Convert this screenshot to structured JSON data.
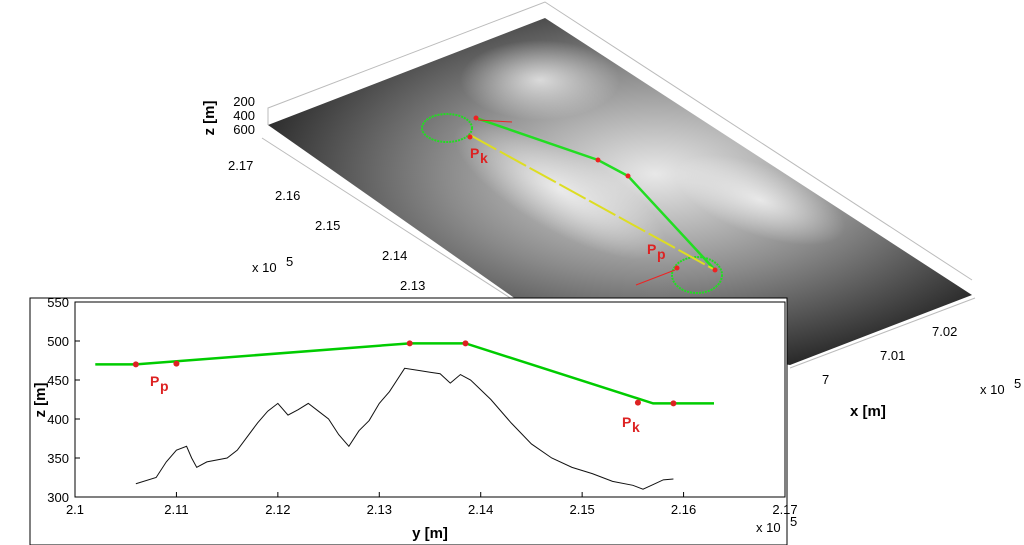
{
  "chart_data": [
    {
      "type": "surface3d",
      "zlabel": "z  [m]",
      "xlabel": "x  [m]",
      "zticks": [
        200,
        400,
        600
      ],
      "yticks": [
        2.13,
        2.14,
        2.15,
        2.16,
        2.17
      ],
      "xticks": [
        7,
        7.01,
        7.02
      ],
      "y_scale_label": {
        "base": "x 10",
        "exponent": "5"
      },
      "x_scale_label": {
        "base": "x 10",
        "exponent": "5"
      },
      "annotations": [
        {
          "text": "P",
          "sub": "k"
        },
        {
          "text": "P",
          "sub": "p"
        }
      ]
    },
    {
      "type": "line",
      "xlabel": "y  [m]",
      "ylabel": "z  [m]",
      "xlim": [
        2.1,
        2.17
      ],
      "xticks": [
        2.1,
        2.11,
        2.12,
        2.13,
        2.14,
        2.15,
        2.16,
        2.17
      ],
      "ylim": [
        300,
        550
      ],
      "yticks": [
        300,
        350,
        400,
        450,
        500,
        550
      ],
      "x_scale_label": {
        "base": "x 10",
        "exponent": "5"
      },
      "series": [
        {
          "color": "#00cc00",
          "style": "line",
          "x": [
            2.102,
            2.106,
            2.133,
            2.1385,
            2.157,
            2.163
          ],
          "values": [
            470,
            470,
            497,
            497,
            420,
            420
          ]
        },
        {
          "color": "#111111",
          "style": "line",
          "x": [
            2.106,
            2.108,
            2.109,
            2.11,
            2.111,
            2.1115,
            2.112,
            2.113,
            2.115,
            2.116,
            2.118,
            2.119,
            2.12,
            2.121,
            2.122,
            2.123,
            2.124,
            2.125,
            2.126,
            2.127,
            2.128,
            2.129,
            2.13,
            2.131,
            2.1325,
            2.134,
            2.135,
            2.136,
            2.137,
            2.138,
            2.139,
            2.141,
            2.143,
            2.145,
            2.147,
            2.149,
            2.151,
            2.153,
            2.155,
            2.156,
            2.157,
            2.158,
            2.159
          ],
          "values": [
            317,
            325,
            345,
            360,
            365,
            350,
            338,
            345,
            350,
            360,
            395,
            410,
            420,
            405,
            412,
            420,
            410,
            400,
            380,
            365,
            385,
            398,
            420,
            435,
            465,
            462,
            460,
            458,
            446,
            457,
            450,
            425,
            395,
            368,
            350,
            338,
            330,
            320,
            315,
            310,
            316,
            322,
            323
          ]
        },
        {
          "color": "#dd2222",
          "style": "points",
          "x": [
            2.106,
            2.11,
            2.133,
            2.1385,
            2.1555,
            2.159
          ],
          "values": [
            470,
            471,
            497,
            497,
            421,
            420
          ]
        }
      ],
      "annotations": [
        {
          "text": "P",
          "sub": "p"
        },
        {
          "text": "P",
          "sub": "k"
        }
      ]
    }
  ]
}
